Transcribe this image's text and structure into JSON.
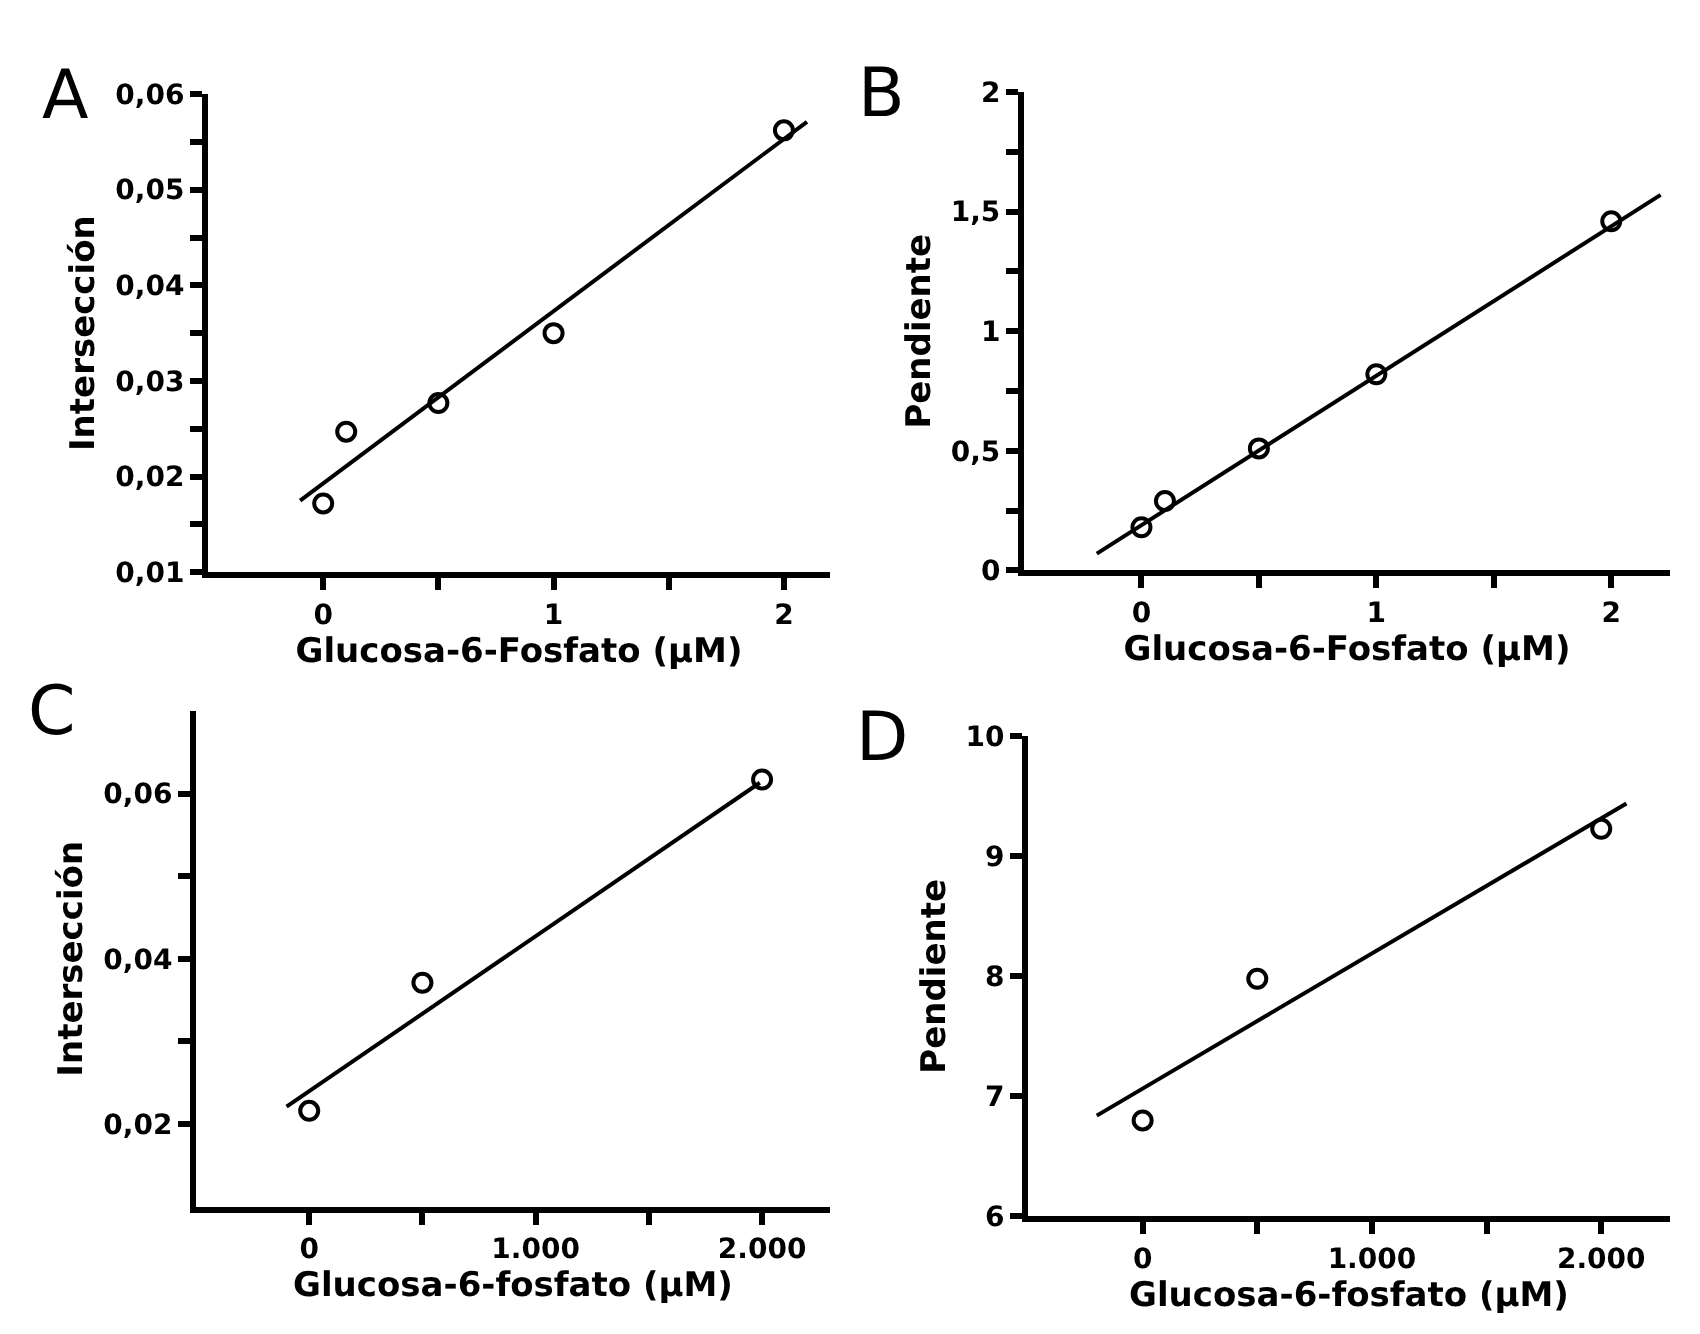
{
  "chart_data": [
    {
      "type": "scatter",
      "title": "A",
      "xlabel": "Glucosa-6-Fosfato (µM)",
      "ylabel": "Intersección",
      "xlim": [
        -0.5,
        2.2
      ],
      "ylim": [
        0.01,
        0.06
      ],
      "xticks": [
        0,
        {
          "value": 0.5,
          "label": null
        },
        1,
        {
          "value": 1.5,
          "label": null
        },
        2
      ],
      "yticks": [
        {
          "value": 0.01,
          "label": "0,01"
        },
        {
          "value": 0.015,
          "label": null
        },
        {
          "value": 0.02,
          "label": "0,02"
        },
        {
          "value": 0.025,
          "label": null
        },
        {
          "value": 0.03,
          "label": "0,03"
        },
        {
          "value": 0.035,
          "label": null
        },
        {
          "value": 0.04,
          "label": "0,04"
        },
        {
          "value": 0.045,
          "label": null
        },
        {
          "value": 0.05,
          "label": "0,05"
        },
        {
          "value": 0.055,
          "label": null
        },
        {
          "value": 0.06,
          "label": "0,06"
        }
      ],
      "series": [
        {
          "marker": "circle",
          "color": "#000000",
          "x": [
            0,
            0.1,
            0.5,
            1,
            2
          ],
          "values": [
            0.0172,
            0.0247,
            0.0277,
            0.035,
            0.0562
          ]
        },
        {
          "type": "line",
          "marker": "none",
          "line_style": "solid",
          "color": "#000000",
          "x": [
            -0.1,
            2.1
          ],
          "values": [
            0.0175,
            0.0571
          ]
        }
      ]
    },
    {
      "type": "scatter",
      "title": "B",
      "xlabel": "Glucosa-6-Fosfato (µM)",
      "ylabel": "Pendiente",
      "xlim": [
        -0.5,
        2.25
      ],
      "ylim": [
        0,
        2
      ],
      "xticks": [
        0,
        {
          "value": 0.5,
          "label": null
        },
        1,
        {
          "value": 1.5,
          "label": null
        },
        2
      ],
      "yticks": [
        0,
        {
          "value": 0.25,
          "label": null
        },
        {
          "value": 0.5,
          "label": "0,5"
        },
        {
          "value": 0.75,
          "label": null
        },
        1,
        {
          "value": 1.25,
          "label": null
        },
        {
          "value": 1.5,
          "label": "1,5"
        },
        {
          "value": 1.75,
          "label": null
        },
        2
      ],
      "series": [
        {
          "marker": "circle",
          "color": "#000000",
          "x": [
            0,
            0.1,
            0.5,
            1,
            2
          ],
          "values": [
            0.18,
            0.29,
            0.51,
            0.82,
            1.46
          ]
        },
        {
          "type": "line",
          "marker": "none",
          "line_style": "solid",
          "color": "#000000",
          "x": [
            -0.19,
            2.21
          ],
          "values": [
            0.07,
            1.57
          ]
        }
      ]
    },
    {
      "type": "scatter",
      "title": "C",
      "xlabel": "Glucosa-6-fosfato (µM)",
      "ylabel": "Intersección",
      "xlim": [
        -500,
        2300
      ],
      "ylim": [
        0.01,
        0.07
      ],
      "xticks": [
        0,
        {
          "value": 500,
          "label": null
        },
        {
          "value": 1000,
          "label": "1.000"
        },
        {
          "value": 1500,
          "label": null
        },
        {
          "value": 2000,
          "label": "2.000"
        }
      ],
      "yticks": [
        {
          "value": 0.02,
          "label": "0,02"
        },
        {
          "value": 0.03,
          "label": null
        },
        {
          "value": 0.04,
          "label": "0,04"
        },
        {
          "value": 0.05,
          "label": null
        },
        {
          "value": 0.06,
          "label": "0,06"
        }
      ],
      "series": [
        {
          "marker": "circle",
          "color": "#000000",
          "x": [
            0,
            500,
            2000
          ],
          "values": [
            0.0216,
            0.0371,
            0.0617
          ]
        },
        {
          "type": "line",
          "marker": "none",
          "line_style": "solid",
          "color": "#000000",
          "x": [
            -100,
            1990
          ],
          "values": [
            0.0221,
            0.0613
          ]
        }
      ]
    },
    {
      "type": "scatter",
      "title": "D",
      "xlabel": "Glucosa-6-fosfato (µM)",
      "ylabel": "Pendiente",
      "xlim": [
        -500,
        2300
      ],
      "ylim": [
        6,
        10
      ],
      "xticks": [
        0,
        {
          "value": 500,
          "label": null
        },
        {
          "value": 1000,
          "label": "1.000"
        },
        {
          "value": 1500,
          "label": null
        },
        {
          "value": 2000,
          "label": "2.000"
        }
      ],
      "yticks": [
        6,
        7,
        8,
        9,
        10
      ],
      "series": [
        {
          "marker": "circle",
          "color": "#000000",
          "x": [
            0,
            500,
            2000
          ],
          "values": [
            6.8,
            7.98,
            9.23
          ]
        },
        {
          "type": "line",
          "marker": "none",
          "line_style": "solid",
          "color": "#000000",
          "x": [
            -200,
            2110
          ],
          "values": [
            6.84,
            9.44
          ]
        }
      ]
    }
  ]
}
